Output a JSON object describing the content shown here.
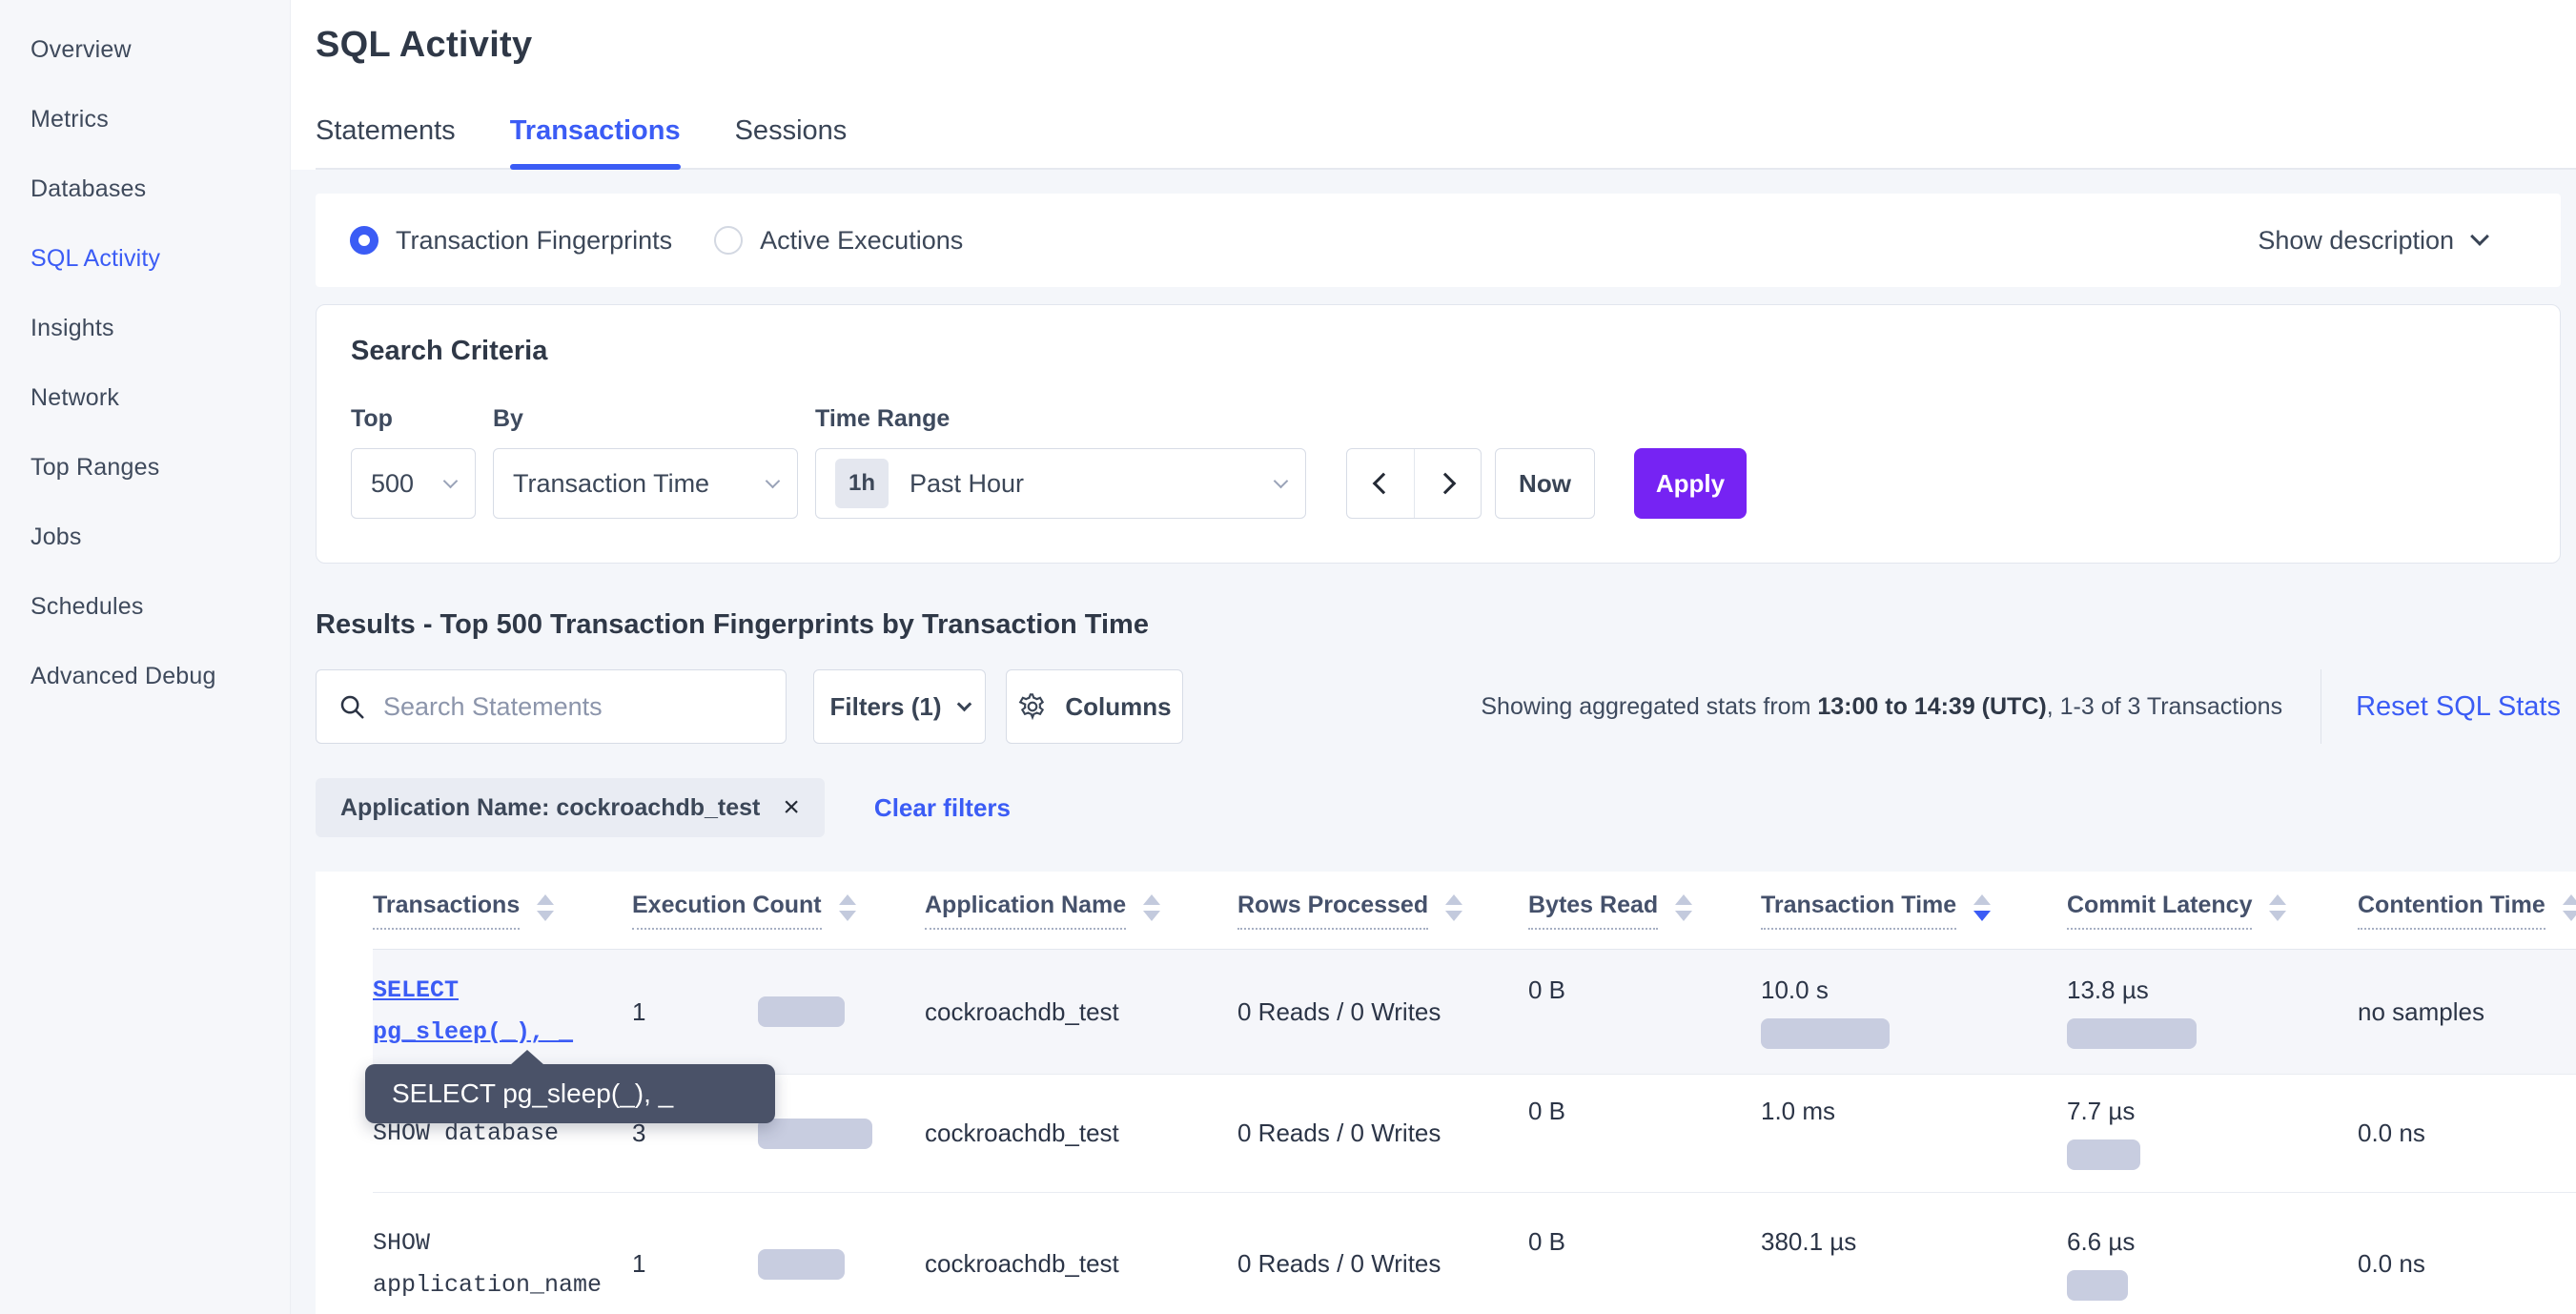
{
  "colors": {
    "accent_blue": "#3b5cf5",
    "apply_purple": "#7623f3",
    "bar_fill": "#c8cde0",
    "tooltip_bg": "#4a5268"
  },
  "sidebar": {
    "items": [
      {
        "label": "Overview",
        "active": false
      },
      {
        "label": "Metrics",
        "active": false
      },
      {
        "label": "Databases",
        "active": false
      },
      {
        "label": "SQL Activity",
        "active": true
      },
      {
        "label": "Insights",
        "active": false
      },
      {
        "label": "Network",
        "active": false
      },
      {
        "label": "Top Ranges",
        "active": false
      },
      {
        "label": "Jobs",
        "active": false
      },
      {
        "label": "Schedules",
        "active": false
      },
      {
        "label": "Advanced Debug",
        "active": false
      }
    ]
  },
  "header": {
    "title": "SQL Activity",
    "tabs": [
      {
        "label": "Statements",
        "active": false
      },
      {
        "label": "Transactions",
        "active": true
      },
      {
        "label": "Sessions",
        "active": false
      }
    ]
  },
  "view_toggle": {
    "options": [
      {
        "label": "Transaction Fingerprints",
        "selected": true
      },
      {
        "label": "Active Executions",
        "selected": false
      }
    ],
    "show_description_label": "Show description"
  },
  "search_criteria": {
    "title": "Search Criteria",
    "top_label": "Top",
    "top_value": "500",
    "by_label": "By",
    "by_value": "Transaction Time",
    "time_range_label": "Time Range",
    "time_range_badge": "1h",
    "time_range_value": "Past Hour",
    "now_label": "Now",
    "apply_label": "Apply"
  },
  "results": {
    "title": "Results - Top 500 Transaction Fingerprints by Transaction Time",
    "search_placeholder": "Search Statements",
    "filters_label": "Filters (1)",
    "columns_label": "Columns",
    "stats_prefix": "Showing aggregated stats from ",
    "stats_bold": "13:00 to 14:39 (UTC)",
    "stats_suffix": ", 1-3 of 3 Transactions",
    "reset_label": "Reset SQL Stats",
    "filter_chip_label": "Application Name: cockroachdb_test",
    "filter_chip_close": "×",
    "clear_filters_label": "Clear filters"
  },
  "tooltip": {
    "text": "SELECT pg_sleep(_), _"
  },
  "table": {
    "columns": [
      {
        "label": "Transactions",
        "sort": "none"
      },
      {
        "label": "Execution Count",
        "sort": "none"
      },
      {
        "label": "Application Name",
        "sort": "none"
      },
      {
        "label": "Rows Processed",
        "sort": "none"
      },
      {
        "label": "Bytes Read",
        "sort": "none"
      },
      {
        "label": "Transaction Time",
        "sort": "desc"
      },
      {
        "label": "Commit Latency",
        "sort": "none"
      },
      {
        "label": "Contention Time",
        "sort": "none"
      }
    ],
    "rows": [
      {
        "transaction_lines": [
          "SELECT",
          "pg_sleep(_), _"
        ],
        "is_link": true,
        "highlighted": true,
        "execution_count": "1",
        "execution_bar_w": 91,
        "application_name": "cockroachdb_test",
        "rows_processed": "0 Reads / 0 Writes",
        "bytes_read": "0 B",
        "transaction_time": "10.0 s",
        "transaction_time_bar_w": 135,
        "commit_latency": "13.8 µs",
        "commit_latency_bar_w": 136,
        "contention_time": "no samples"
      },
      {
        "transaction_lines": [
          "SHOW database"
        ],
        "is_link": false,
        "highlighted": false,
        "execution_count": "3",
        "execution_bar_w": 120,
        "application_name": "cockroachdb_test",
        "rows_processed": "0 Reads / 0 Writes",
        "bytes_read": "0 B",
        "transaction_time": "1.0 ms",
        "transaction_time_bar_w": 0,
        "commit_latency": "7.7 µs",
        "commit_latency_bar_w": 77,
        "contention_time": "0.0 ns"
      },
      {
        "transaction_lines": [
          "SHOW",
          "application_name"
        ],
        "is_link": false,
        "highlighted": false,
        "execution_count": "1",
        "execution_bar_w": 91,
        "application_name": "cockroachdb_test",
        "rows_processed": "0 Reads / 0 Writes",
        "bytes_read": "0 B",
        "transaction_time": "380.1 µs",
        "transaction_time_bar_w": 0,
        "commit_latency": "6.6 µs",
        "commit_latency_bar_w": 64,
        "contention_time": "0.0 ns"
      }
    ]
  }
}
